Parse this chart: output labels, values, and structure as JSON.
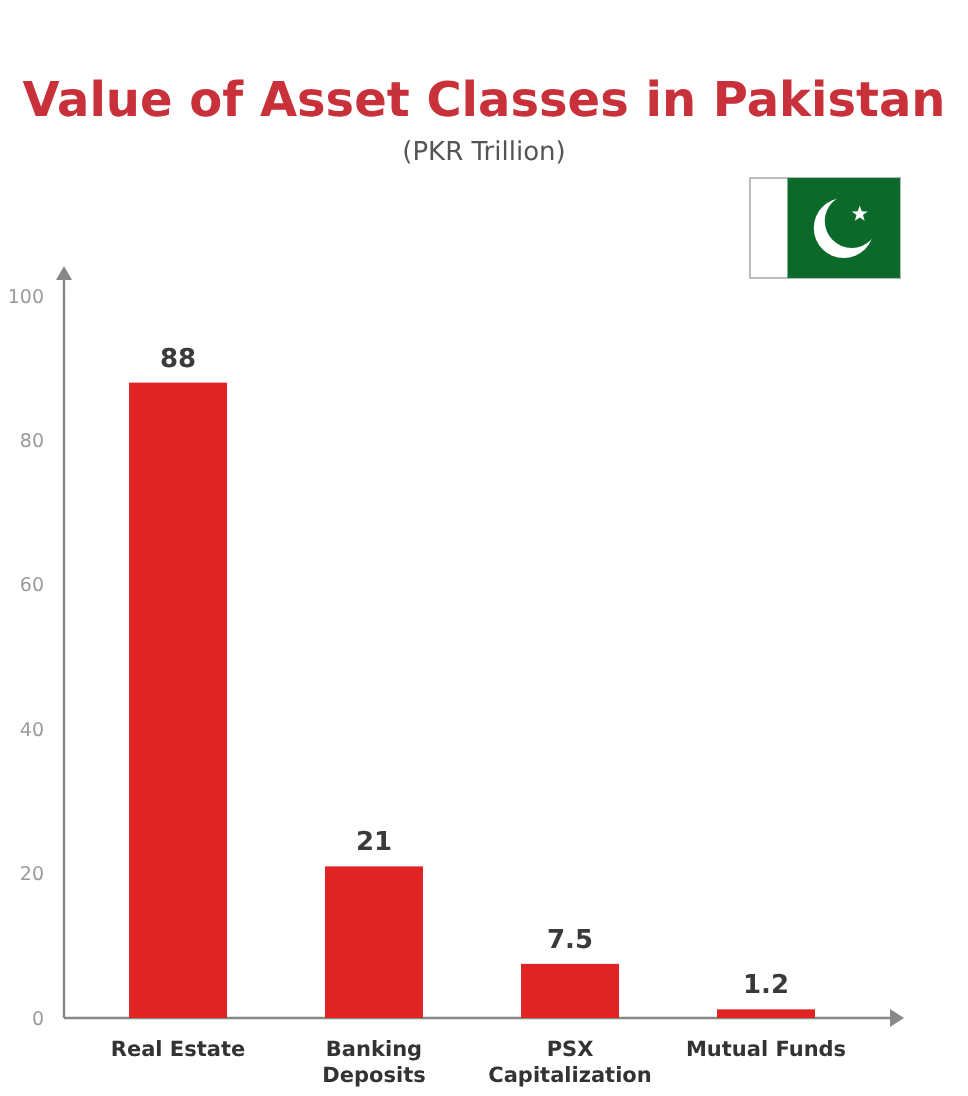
{
  "chart_data": {
    "type": "bar",
    "title": "Value of Asset Classes in Pakistan",
    "subtitle": "(PKR Trillion)",
    "categories": [
      "Real Estate",
      "Banking Deposits",
      "PSX Capitalization",
      "Mutual Funds"
    ],
    "values": [
      88,
      21,
      7.5,
      1.2
    ],
    "color": "#e02424",
    "ylim": [
      0,
      100
    ],
    "yticks": [
      0,
      20,
      40,
      60,
      80,
      100
    ],
    "data_labels": true
  }
}
